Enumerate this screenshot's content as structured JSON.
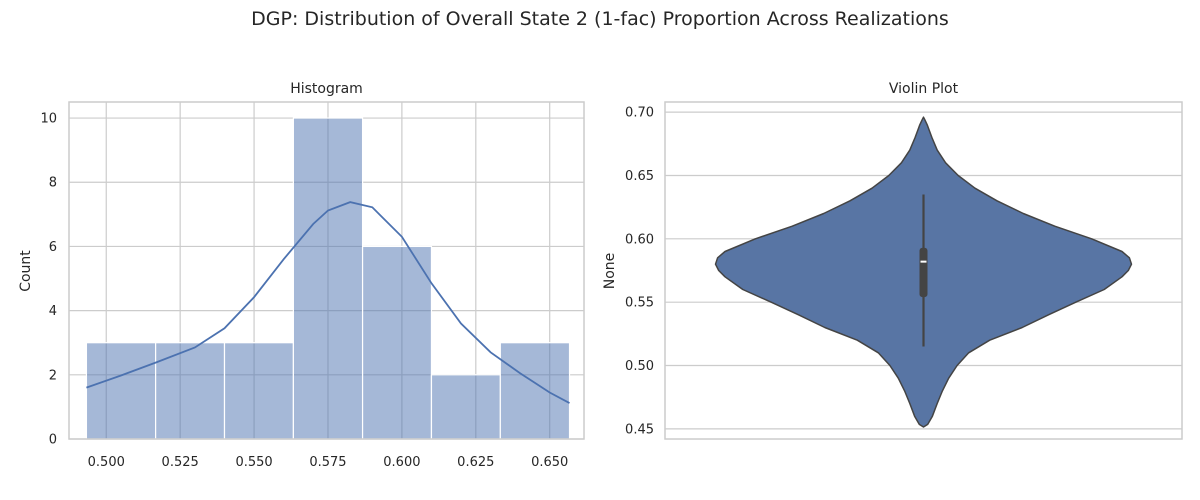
{
  "figure": {
    "title": "DGP: Distribution of Overall State 2 (1-fac) Proportion Across Realizations"
  },
  "chart_data": [
    {
      "type": "bar",
      "title": "Histogram",
      "xlabel": "",
      "ylabel": "Count",
      "xlim": [
        0.4874,
        0.6616
      ],
      "ylim": [
        0,
        10.5
      ],
      "xticks": [
        0.5,
        0.525,
        0.55,
        0.575,
        0.6,
        0.625,
        0.65
      ],
      "xtick_labels": [
        "0.500",
        "0.525",
        "0.550",
        "0.575",
        "0.600",
        "0.625",
        "0.650"
      ],
      "yticks": [
        0,
        2,
        4,
        6,
        8,
        10
      ],
      "ytick_labels": [
        "0",
        "2",
        "4",
        "6",
        "8",
        "10"
      ],
      "bin_edges": [
        0.4933,
        0.5167,
        0.54,
        0.5633,
        0.5867,
        0.61,
        0.6333,
        0.6567
      ],
      "counts": [
        3,
        3,
        3,
        10,
        6,
        2,
        3
      ],
      "bar_color": "#4c72b0",
      "kde": {
        "x": [
          0.4933,
          0.505,
          0.5167,
          0.53,
          0.54,
          0.55,
          0.56,
          0.57,
          0.575,
          0.5825,
          0.59,
          0.6,
          0.61,
          0.62,
          0.63,
          0.64,
          0.65,
          0.6567
        ],
        "y": [
          1.6,
          1.98,
          2.38,
          2.85,
          3.45,
          4.42,
          5.6,
          6.7,
          7.12,
          7.38,
          7.22,
          6.3,
          4.85,
          3.6,
          2.7,
          2.05,
          1.45,
          1.12
        ],
        "color": "#4c72b0"
      },
      "grid": true
    },
    {
      "type": "violin",
      "title": "Violin Plot",
      "xlabel": "",
      "ylabel": "None",
      "ylim": [
        0.442,
        0.708
      ],
      "yticks": [
        0.45,
        0.5,
        0.55,
        0.6,
        0.65,
        0.7
      ],
      "ytick_labels": [
        "0.45",
        "0.50",
        "0.55",
        "0.60",
        "0.65",
        "0.70"
      ],
      "density": {
        "y": [
          0.4515,
          0.4535,
          0.46,
          0.47,
          0.48,
          0.49,
          0.5,
          0.51,
          0.52,
          0.53,
          0.54,
          0.55,
          0.56,
          0.57,
          0.575,
          0.58,
          0.585,
          0.59,
          0.6,
          0.61,
          0.62,
          0.63,
          0.64,
          0.65,
          0.66,
          0.67,
          0.68,
          0.69,
          0.694,
          0.696
        ],
        "width": [
          0.0,
          0.04,
          0.085,
          0.13,
          0.18,
          0.24,
          0.32,
          0.43,
          0.63,
          0.94,
          1.19,
          1.45,
          1.72,
          1.89,
          1.95,
          1.98,
          1.96,
          1.89,
          1.6,
          1.25,
          0.95,
          0.7,
          0.49,
          0.33,
          0.21,
          0.13,
          0.08,
          0.035,
          0.012,
          0.0
        ]
      },
      "whisker": [
        0.515,
        0.635
      ],
      "quartiles": [
        0.554,
        0.593
      ],
      "median": 0.582,
      "fill_color": "#5875a4",
      "edge_color": "#444444",
      "grid": true
    }
  ]
}
